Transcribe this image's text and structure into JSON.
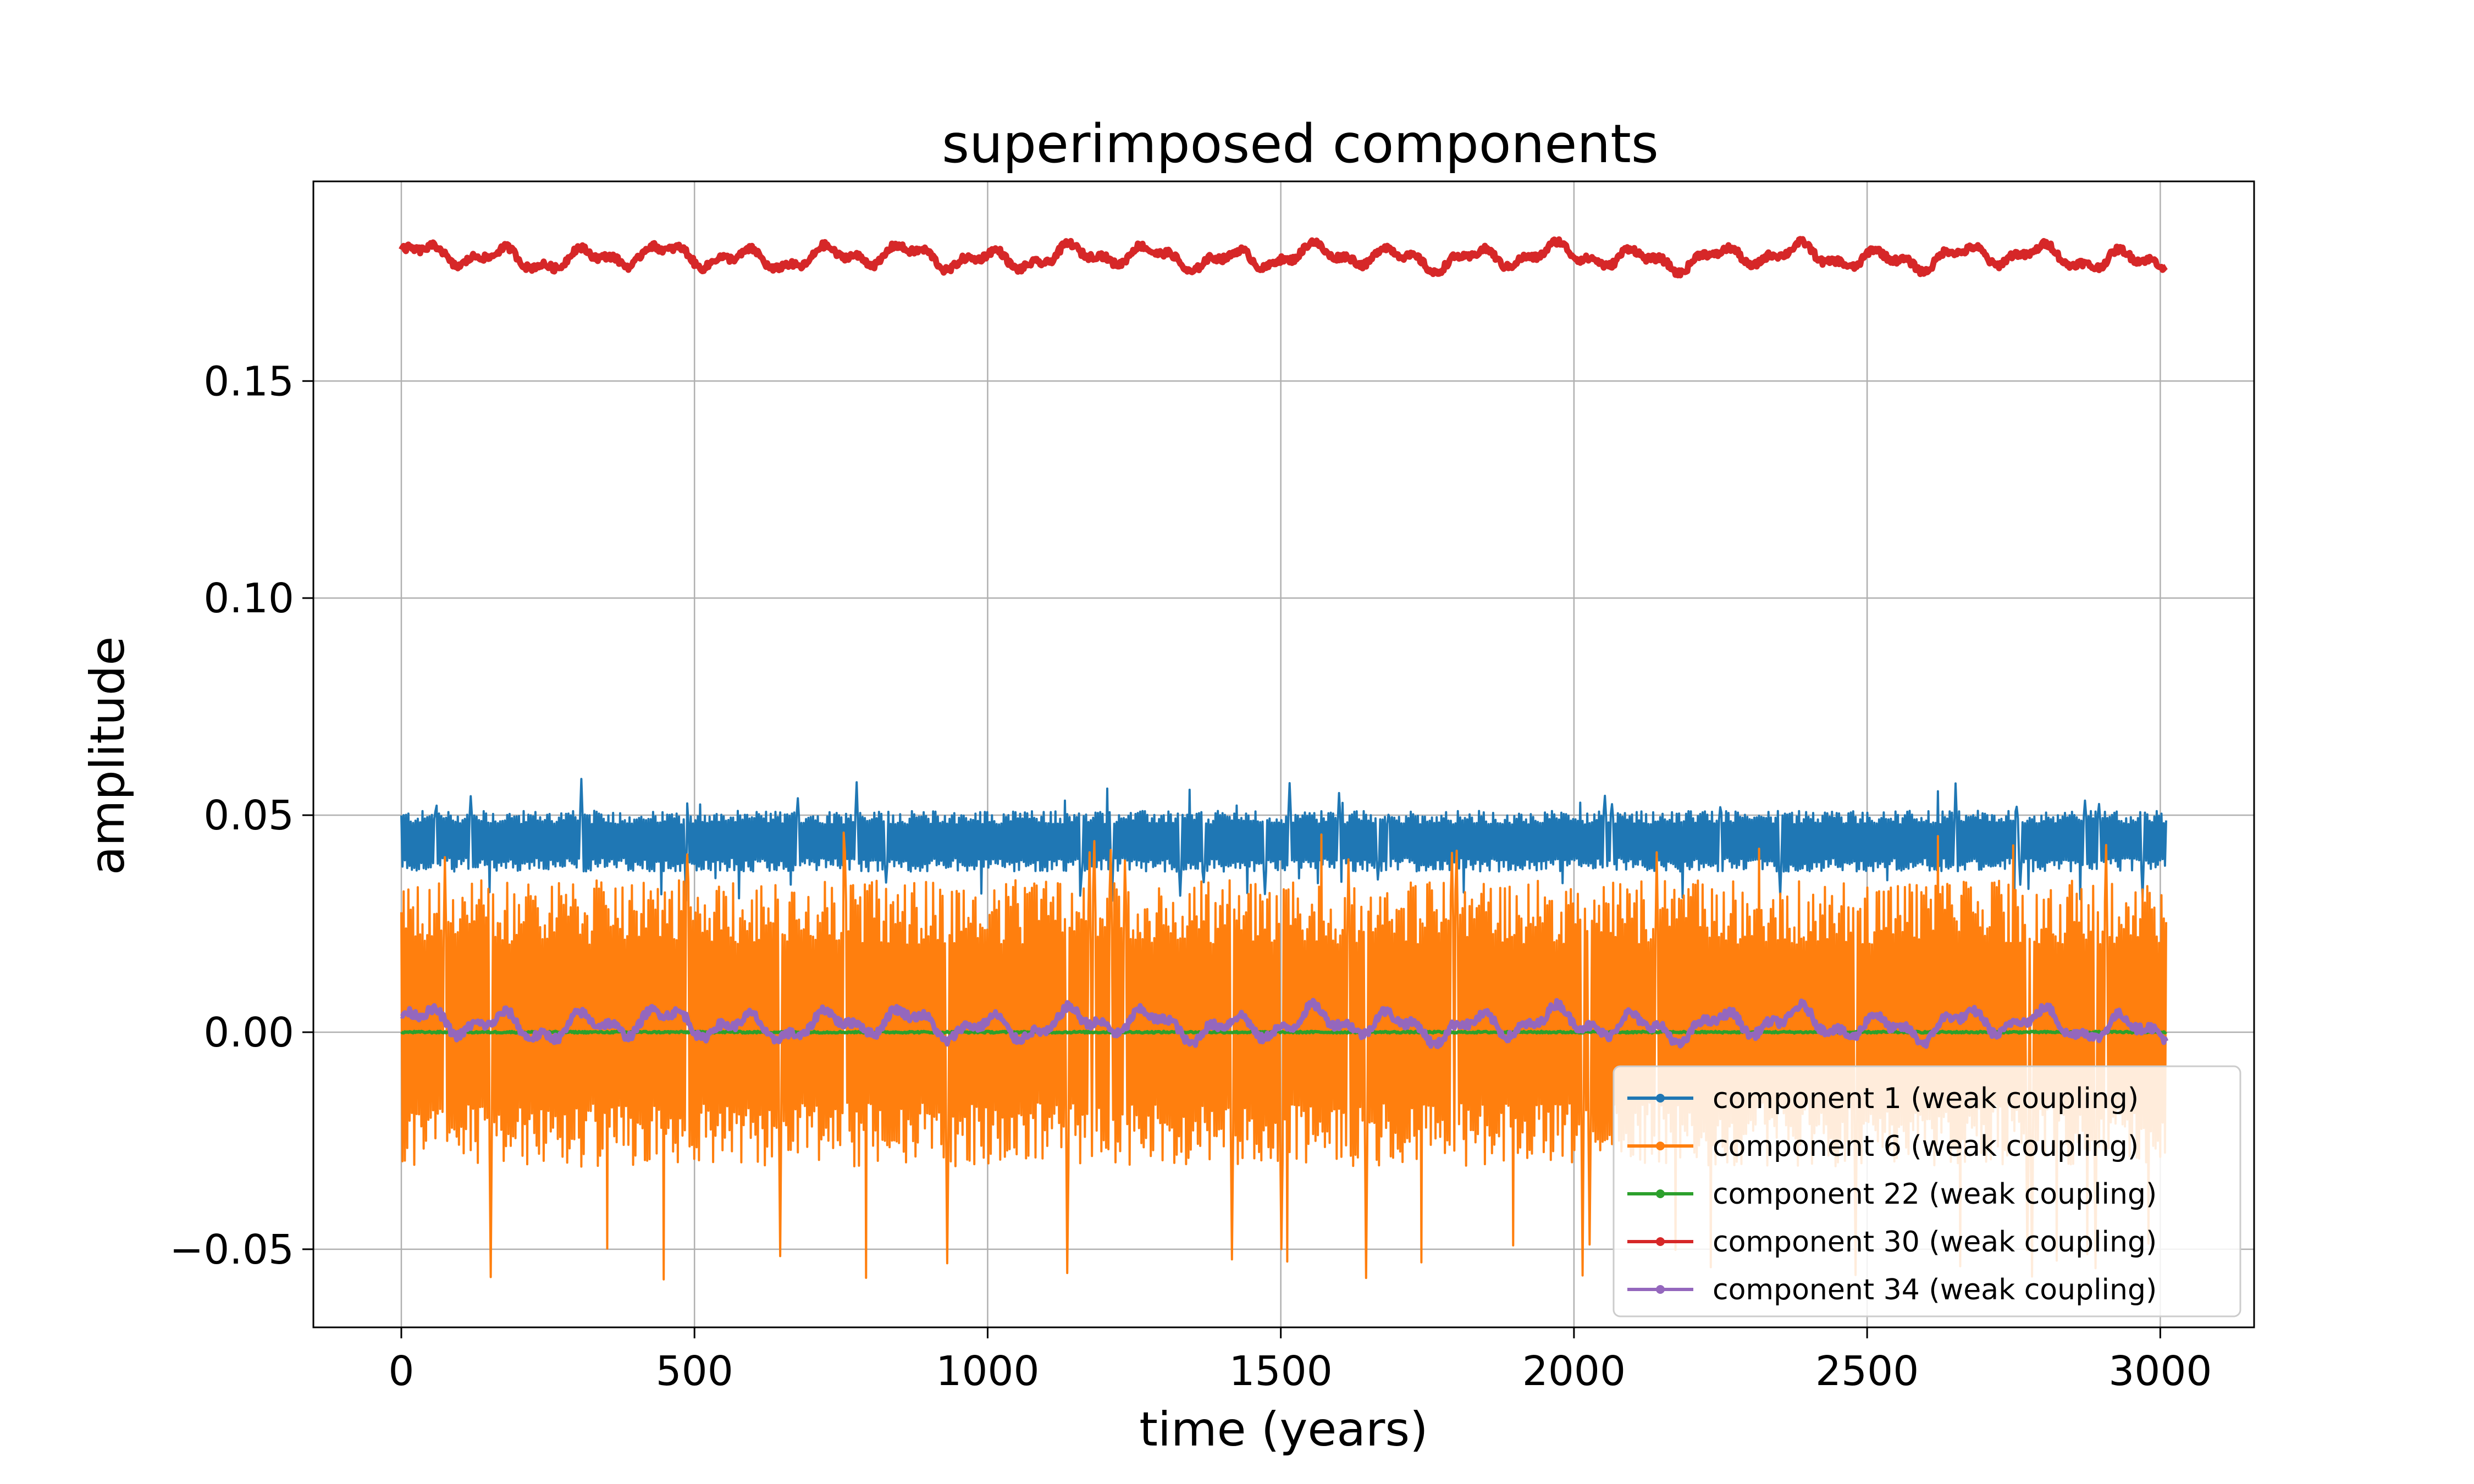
{
  "chart_data": {
    "type": "line",
    "title": "superimposed components",
    "xlabel": "time (years)",
    "ylabel": "amplitude",
    "xlim": [
      -150,
      3160
    ],
    "ylim": [
      -0.068,
      0.196
    ],
    "xticks": [
      0,
      500,
      1000,
      1500,
      2000,
      2500,
      3000
    ],
    "xtick_labels": [
      "0",
      "500",
      "1000",
      "1500",
      "2000",
      "2500",
      "3000"
    ],
    "yticks": [
      -0.05,
      0.0,
      0.05,
      0.1,
      0.15
    ],
    "ytick_labels": [
      "−0.05",
      "0.00",
      "0.05",
      "0.10",
      "0.15"
    ],
    "grid": true,
    "legend_position": "lower-right",
    "x_range": [
      0,
      3010
    ],
    "series": [
      {
        "name": "component 1 (weak coupling)",
        "color": "#1f77b4",
        "center": 0.0435,
        "band_low": 0.037,
        "band_high": 0.051,
        "spike_max": 0.0585,
        "spike_min": 0.0355
      },
      {
        "name": "component 6 (weak coupling)",
        "color": "#ff7f0e",
        "center": 0.0,
        "band_low": -0.031,
        "band_high": 0.035,
        "spike_max": 0.046,
        "spike_min": -0.057
      },
      {
        "name": "component 22 (weak coupling)",
        "color": "#2ca02c",
        "center": 0.0,
        "band_low": -0.0004,
        "band_high": 0.0004,
        "spike_max": 0.0006,
        "spike_min": -0.0006
      },
      {
        "name": "component 30 (weak coupling)",
        "color": "#d62728",
        "center": 0.1785,
        "band_low": 0.174,
        "band_high": 0.183,
        "spike_max": 0.1845,
        "spike_min": 0.173
      },
      {
        "name": "component 34 (weak coupling)",
        "color": "#9467bd",
        "center": 0.0015,
        "band_low": -0.004,
        "band_high": 0.0075,
        "spike_max": 0.008,
        "spike_min": -0.006
      }
    ]
  }
}
